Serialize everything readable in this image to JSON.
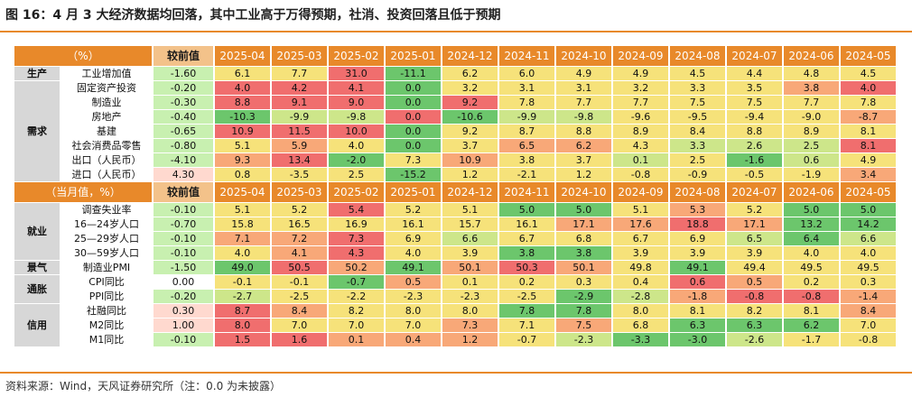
{
  "title": "图 16：4 月 3 大经济数据均回落，其中工业高于万得预期，社消、投资回落且低于预期",
  "source": "资料来源：Wind，天风证券研究所（注：0.0 为未披露）",
  "colors": {
    "header_orange": "#e8892a",
    "header_comp": "#f3c28a",
    "positive_comp": "#ffd9cf",
    "negative_comp": "#c8f0b0",
    "neutral": "#ffffff",
    "red": "#f06e6e",
    "orange": "#f8a878",
    "yellow": "#f6e27a",
    "yellowgreen": "#cde68a",
    "green": "#6cc66c"
  },
  "months": [
    "2025-04",
    "2025-03",
    "2025-02",
    "2025-01",
    "2024-12",
    "2024-11",
    "2024-10",
    "2024-09",
    "2024-08",
    "2024-07",
    "2024-06",
    "2024-05"
  ],
  "sections": [
    {
      "header": "（%）",
      "comp_label": "较前值",
      "groups": [
        {
          "category": "生产",
          "rows": [
            {
              "name": "工业增加值",
              "comp": "-1.60",
              "comp_color": "negative",
              "values": [
                "6.1",
                "7.7",
                "31.0",
                "-11.1",
                "6.2",
                "6.0",
                "4.9",
                "4.9",
                "4.5",
                "4.4",
                "4.8",
                "4.5"
              ],
              "colors": [
                "yellow",
                "yellow",
                "red",
                "green",
                "yellow",
                "yellow",
                "yellow",
                "yellow",
                "yellow",
                "yellow",
                "yellow",
                "yellow"
              ]
            }
          ]
        },
        {
          "category": "需求",
          "rows": [
            {
              "name": "固定资产投资",
              "comp": "-0.20",
              "comp_color": "negative",
              "values": [
                "4.0",
                "4.2",
                "4.1",
                "0.0",
                "3.2",
                "3.1",
                "3.1",
                "3.2",
                "3.3",
                "3.5",
                "3.8",
                "4.0"
              ],
              "colors": [
                "red",
                "red",
                "red",
                "green",
                "yellow",
                "yellow",
                "yellow",
                "yellow",
                "yellow",
                "yellow",
                "orange",
                "red"
              ]
            },
            {
              "name": "制造业",
              "comp": "-0.30",
              "comp_color": "negative",
              "values": [
                "8.8",
                "9.1",
                "9.0",
                "0.0",
                "9.2",
                "7.8",
                "7.7",
                "7.7",
                "7.5",
                "7.5",
                "7.7",
                "7.8"
              ],
              "colors": [
                "red",
                "red",
                "red",
                "green",
                "red",
                "yellow",
                "yellow",
                "yellow",
                "yellow",
                "yellow",
                "yellow",
                "yellow"
              ]
            },
            {
              "name": "房地产",
              "comp": "-0.40",
              "comp_color": "negative",
              "values": [
                "-10.3",
                "-9.9",
                "-9.8",
                "0.0",
                "-10.6",
                "-9.9",
                "-9.8",
                "-9.6",
                "-9.5",
                "-9.4",
                "-9.0",
                "-8.7"
              ],
              "colors": [
                "green",
                "yellowgreen",
                "yellowgreen",
                "red",
                "green",
                "yellowgreen",
                "yellowgreen",
                "yellow",
                "yellow",
                "yellow",
                "yellow",
                "orange"
              ]
            },
            {
              "name": "基建",
              "comp": "-0.65",
              "comp_color": "negative",
              "values": [
                "10.9",
                "11.5",
                "10.0",
                "0.0",
                "9.2",
                "8.7",
                "8.8",
                "8.9",
                "8.4",
                "8.8",
                "8.9",
                "8.1"
              ],
              "colors": [
                "red",
                "red",
                "red",
                "green",
                "yellow",
                "yellow",
                "yellow",
                "yellow",
                "yellow",
                "yellow",
                "yellow",
                "yellow"
              ]
            },
            {
              "name": "社会消费品零售",
              "comp": "-0.80",
              "comp_color": "negative",
              "values": [
                "5.1",
                "5.9",
                "4.0",
                "0.0",
                "3.7",
                "6.5",
                "6.2",
                "4.3",
                "3.3",
                "2.6",
                "2.5",
                "8.1"
              ],
              "colors": [
                "yellow",
                "orange",
                "yellow",
                "green",
                "yellow",
                "orange",
                "orange",
                "yellow",
                "yellowgreen",
                "yellowgreen",
                "yellowgreen",
                "red"
              ]
            },
            {
              "name": "出口（人民币）",
              "comp": "-4.10",
              "comp_color": "negative",
              "values": [
                "9.3",
                "13.4",
                "-2.0",
                "7.3",
                "10.9",
                "3.8",
                "3.7",
                "0.1",
                "2.5",
                "-1.6",
                "0.6",
                "4.9"
              ],
              "colors": [
                "orange",
                "red",
                "green",
                "yellow",
                "orange",
                "yellow",
                "yellow",
                "yellowgreen",
                "yellow",
                "green",
                "yellowgreen",
                "yellow"
              ]
            },
            {
              "name": "进口（人民币）",
              "comp": "4.30",
              "comp_color": "positive",
              "values": [
                "0.8",
                "-3.5",
                "2.5",
                "-15.2",
                "1.2",
                "-2.1",
                "1.2",
                "-0.8",
                "-0.9",
                "-0.5",
                "-1.9",
                "3.4"
              ],
              "colors": [
                "yellow",
                "yellow",
                "yellow",
                "green",
                "yellow",
                "yellow",
                "yellow",
                "yellow",
                "yellow",
                "yellow",
                "yellow",
                "orange"
              ]
            }
          ]
        }
      ]
    },
    {
      "header": "（当月值，%）",
      "comp_label": "较前值",
      "groups": [
        {
          "category": "就业",
          "rows": [
            {
              "name": "调查失业率",
              "comp": "-0.10",
              "comp_color": "negative",
              "values": [
                "5.1",
                "5.2",
                "5.4",
                "5.2",
                "5.1",
                "5.0",
                "5.0",
                "5.1",
                "5.3",
                "5.2",
                "5.0",
                "5.0"
              ],
              "colors": [
                "yellow",
                "yellow",
                "red",
                "yellow",
                "yellow",
                "green",
                "green",
                "yellow",
                "orange",
                "yellow",
                "green",
                "green"
              ]
            },
            {
              "name": "16—24岁人口",
              "comp": "-0.70",
              "comp_color": "negative",
              "values": [
                "15.8",
                "16.5",
                "16.9",
                "16.1",
                "15.7",
                "16.1",
                "17.1",
                "17.6",
                "18.8",
                "17.1",
                "13.2",
                "14.2"
              ],
              "colors": [
                "yellow",
                "yellow",
                "yellow",
                "yellow",
                "yellow",
                "yellow",
                "orange",
                "orange",
                "red",
                "orange",
                "green",
                "green"
              ]
            },
            {
              "name": "25—29岁人口",
              "comp": "-0.10",
              "comp_color": "negative",
              "values": [
                "7.1",
                "7.2",
                "7.3",
                "6.9",
                "6.6",
                "6.7",
                "6.8",
                "6.7",
                "6.9",
                "6.5",
                "6.4",
                "6.6"
              ],
              "colors": [
                "orange",
                "orange",
                "red",
                "yellow",
                "yellowgreen",
                "yellow",
                "yellow",
                "yellow",
                "yellow",
                "yellowgreen",
                "green",
                "yellowgreen"
              ]
            },
            {
              "name": "30—59岁人口",
              "comp": "-0.10",
              "comp_color": "negative",
              "values": [
                "4.0",
                "4.1",
                "4.3",
                "4.0",
                "3.9",
                "3.8",
                "3.8",
                "3.9",
                "3.9",
                "3.9",
                "4.0",
                "4.0"
              ],
              "colors": [
                "yellow",
                "orange",
                "red",
                "yellow",
                "yellow",
                "green",
                "green",
                "yellow",
                "yellow",
                "yellow",
                "yellow",
                "yellow"
              ]
            }
          ]
        },
        {
          "category": "景气",
          "rows": [
            {
              "name": "制造业PMI",
              "comp": "-1.50",
              "comp_color": "negative",
              "values": [
                "49.0",
                "50.5",
                "50.2",
                "49.1",
                "50.1",
                "50.3",
                "50.1",
                "49.8",
                "49.1",
                "49.4",
                "49.5",
                "49.5"
              ],
              "colors": [
                "green",
                "red",
                "orange",
                "green",
                "orange",
                "red",
                "orange",
                "yellow",
                "green",
                "yellow",
                "yellow",
                "yellow"
              ]
            }
          ]
        },
        {
          "category": "通胀",
          "rows": [
            {
              "name": "CPI同比",
              "comp": "0.00",
              "comp_color": "neutral",
              "values": [
                "-0.1",
                "-0.1",
                "-0.7",
                "0.5",
                "0.1",
                "0.2",
                "0.3",
                "0.4",
                "0.6",
                "0.5",
                "0.2",
                "0.3"
              ],
              "colors": [
                "yellow",
                "yellow",
                "green",
                "orange",
                "yellow",
                "yellow",
                "yellow",
                "yellow",
                "red",
                "orange",
                "yellow",
                "yellow"
              ]
            },
            {
              "name": "PPI同比",
              "comp": "-0.20",
              "comp_color": "negative",
              "values": [
                "-2.7",
                "-2.5",
                "-2.2",
                "-2.3",
                "-2.3",
                "-2.5",
                "-2.9",
                "-2.8",
                "-1.8",
                "-0.8",
                "-0.8",
                "-1.4"
              ],
              "colors": [
                "yellowgreen",
                "yellow",
                "yellow",
                "yellow",
                "yellow",
                "yellow",
                "green",
                "yellowgreen",
                "orange",
                "red",
                "red",
                "orange"
              ]
            }
          ]
        },
        {
          "category": "信用",
          "rows": [
            {
              "name": "社融同比",
              "comp": "0.30",
              "comp_color": "positive",
              "values": [
                "8.7",
                "8.4",
                "8.2",
                "8.0",
                "8.0",
                "7.8",
                "7.8",
                "8.0",
                "8.1",
                "8.2",
                "8.1",
                "8.4"
              ],
              "colors": [
                "red",
                "orange",
                "yellow",
                "yellow",
                "yellow",
                "green",
                "green",
                "yellow",
                "yellow",
                "yellow",
                "yellow",
                "orange"
              ]
            },
            {
              "name": "M2同比",
              "comp": "1.00",
              "comp_color": "positive",
              "values": [
                "8.0",
                "7.0",
                "7.0",
                "7.0",
                "7.3",
                "7.1",
                "7.5",
                "6.8",
                "6.3",
                "6.3",
                "6.2",
                "7.0"
              ],
              "colors": [
                "red",
                "yellow",
                "yellow",
                "yellow",
                "orange",
                "yellow",
                "orange",
                "yellow",
                "green",
                "green",
                "green",
                "yellow"
              ]
            },
            {
              "name": "M1同比",
              "comp": "-0.10",
              "comp_color": "negative",
              "values": [
                "1.5",
                "1.6",
                "0.1",
                "0.4",
                "1.2",
                "-0.7",
                "-2.3",
                "-3.3",
                "-3.0",
                "-2.6",
                "-1.7",
                "-0.8"
              ],
              "colors": [
                "red",
                "red",
                "orange",
                "orange",
                "orange",
                "yellow",
                "yellowgreen",
                "green",
                "green",
                "yellowgreen",
                "yellow",
                "yellow"
              ]
            }
          ]
        }
      ]
    }
  ]
}
